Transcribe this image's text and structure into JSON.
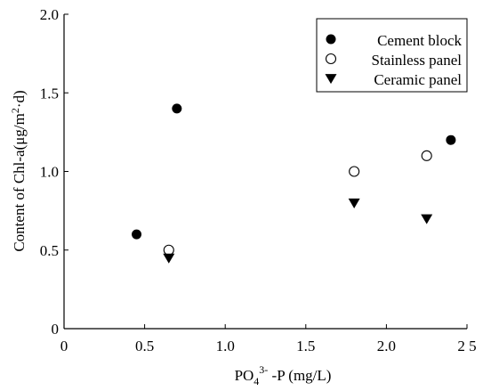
{
  "chart_data": {
    "type": "scatter",
    "title": "",
    "xlabel": {
      "prefix": "PO",
      "sub": "4",
      "sup": "3-",
      "suffix": " -P (mg/L)"
    },
    "ylabel": {
      "before": "Content of Chl-a(μg/m",
      "sup": "2",
      "after": "·d)"
    },
    "xlim": [
      0,
      2.5
    ],
    "ylim": [
      0,
      2.0
    ],
    "x_ticks": [
      {
        "value": 0,
        "label": "0"
      },
      {
        "value": 0.5,
        "label": "0.5"
      },
      {
        "value": 1.0,
        "label": "1.0"
      },
      {
        "value": 1.5,
        "label": "1.5"
      },
      {
        "value": 2.0,
        "label": "2.0"
      },
      {
        "value": 2.5,
        "label": "2 5"
      }
    ],
    "y_ticks": [
      {
        "value": 0,
        "label": "0"
      },
      {
        "value": 0.5,
        "label": "0.5"
      },
      {
        "value": 1.0,
        "label": "1.0"
      },
      {
        "value": 1.5,
        "label": "1.5"
      },
      {
        "value": 2.0,
        "label": "2.0"
      }
    ],
    "legend_position": "top-right",
    "grid": false,
    "series": [
      {
        "name": "Cement block",
        "marker": "filled-circle",
        "color": "#000000",
        "points": [
          {
            "x": 0.45,
            "y": 0.6
          },
          {
            "x": 0.7,
            "y": 1.4
          },
          {
            "x": 2.4,
            "y": 1.2
          }
        ]
      },
      {
        "name": "Stainless panel",
        "marker": "open-circle",
        "color": "#000000",
        "points": [
          {
            "x": 0.65,
            "y": 0.5
          },
          {
            "x": 1.8,
            "y": 1.0
          },
          {
            "x": 2.25,
            "y": 1.1
          }
        ]
      },
      {
        "name": "Ceramic panel",
        "marker": "filled-triangle-down",
        "color": "#000000",
        "points": [
          {
            "x": 0.65,
            "y": 0.45
          },
          {
            "x": 1.8,
            "y": 0.8
          },
          {
            "x": 2.25,
            "y": 0.7
          }
        ]
      }
    ]
  }
}
